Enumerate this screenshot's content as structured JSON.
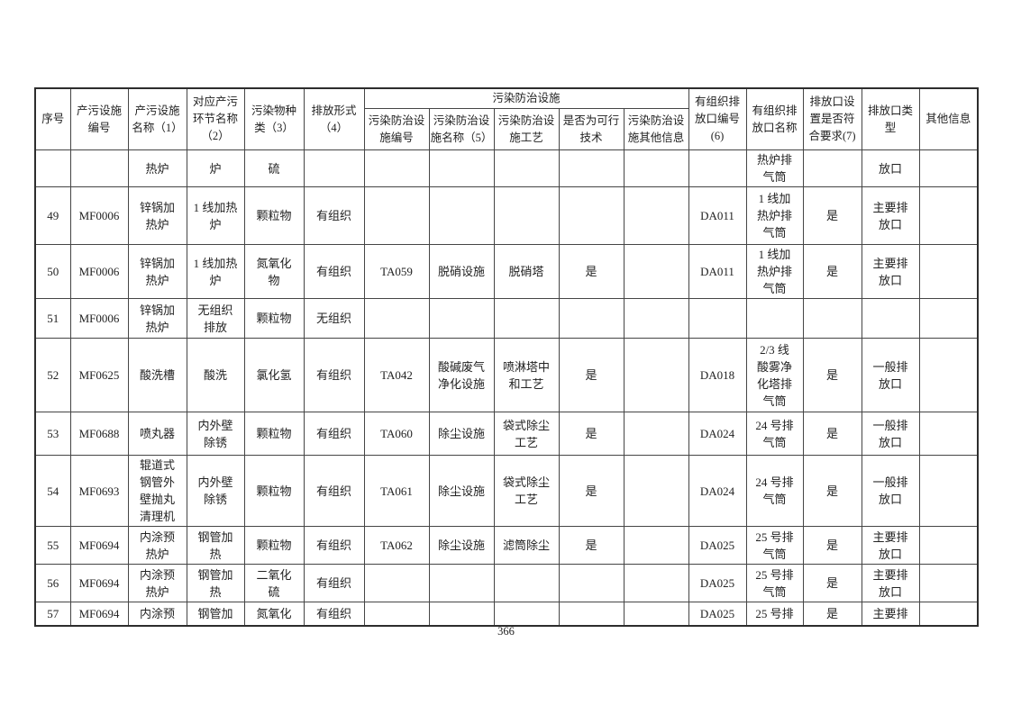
{
  "page": {
    "number": "366"
  },
  "table": {
    "group_header": "污染防治设施",
    "headers": {
      "seq": "序号",
      "facility_no": "产污设施\n编号",
      "facility_name": "产污设施\n名称（1）",
      "process_name": "对应产污\n环节名称\n（2）",
      "pollutant_type": "污染物种\n类（3）",
      "discharge_form": "排放形式\n（4）",
      "treatment_no": "污染防治设\n施编号",
      "treatment_name": "污染防治设\n施名称（5）",
      "treatment_process": "污染防治设\n施工艺",
      "feasible_tech": "是否为可行\n技术",
      "treatment_other_info": "污染防治设\n施其他信息",
      "outlet_no": "有组织排\n放口编号\n(6)",
      "outlet_name": "有组织排\n放口名称",
      "outlet_compliance": "排放口设\n置是否符\n合要求(7)",
      "outlet_type": "排放口类\n型",
      "other_info": "其他信息"
    },
    "rows": [
      {
        "cells": [
          "",
          "",
          "热炉",
          "炉",
          "硫",
          "",
          "",
          "",
          "",
          "",
          "",
          "",
          "热炉排\n气筒",
          "",
          "放口",
          ""
        ]
      },
      {
        "cells": [
          "49",
          "MF0006",
          "锌锅加\n热炉",
          "1 线加热\n炉",
          "颗粒物",
          "有组织",
          "",
          "",
          "",
          "",
          "",
          "DA011",
          "1 线加\n热炉排\n气筒",
          "是",
          "主要排\n放口",
          ""
        ]
      },
      {
        "cells": [
          "50",
          "MF0006",
          "锌锅加\n热炉",
          "1 线加热\n炉",
          "氮氧化\n物",
          "有组织",
          "TA059",
          "脱硝设施",
          "脱硝塔",
          "是",
          "",
          "DA011",
          "1 线加\n热炉排\n气筒",
          "是",
          "主要排\n放口",
          ""
        ]
      },
      {
        "cells": [
          "51",
          "MF0006",
          "锌锅加\n热炉",
          "无组织\n排放",
          "颗粒物",
          "无组织",
          "",
          "",
          "",
          "",
          "",
          "",
          "",
          "",
          "",
          ""
        ]
      },
      {
        "cells": [
          "52",
          "MF0625",
          "酸洗槽",
          "酸洗",
          "氯化氢",
          "有组织",
          "TA042",
          "酸碱废气\n净化设施",
          "喷淋塔中\n和工艺",
          "是",
          "",
          "DA018",
          "2/3 线\n酸雾净\n化塔排\n气筒",
          "是",
          "一般排\n放口",
          ""
        ]
      },
      {
        "cells": [
          "53",
          "MF0688",
          "喷丸器",
          "内外壁\n除锈",
          "颗粒物",
          "有组织",
          "TA060",
          "除尘设施",
          "袋式除尘\n工艺",
          "是",
          "",
          "DA024",
          "24 号排\n气筒",
          "是",
          "一般排\n放口",
          ""
        ]
      },
      {
        "cells": [
          "54",
          "MF0693",
          "辊道式\n钢管外\n壁抛丸\n清理机",
          "内外壁\n除锈",
          "颗粒物",
          "有组织",
          "TA061",
          "除尘设施",
          "袋式除尘\n工艺",
          "是",
          "",
          "DA024",
          "24 号排\n气筒",
          "是",
          "一般排\n放口",
          ""
        ]
      },
      {
        "cells": [
          "55",
          "MF0694",
          "内涂预\n热炉",
          "钢管加\n热",
          "颗粒物",
          "有组织",
          "TA062",
          "除尘设施",
          "滤筒除尘",
          "是",
          "",
          "DA025",
          "25 号排\n气筒",
          "是",
          "主要排\n放口",
          ""
        ]
      },
      {
        "cells": [
          "56",
          "MF0694",
          "内涂预\n热炉",
          "钢管加\n热",
          "二氧化\n硫",
          "有组织",
          "",
          "",
          "",
          "",
          "",
          "DA025",
          "25 号排\n气筒",
          "是",
          "主要排\n放口",
          ""
        ]
      },
      {
        "cells": [
          "57",
          "MF0694",
          "内涂预",
          "钢管加",
          "氮氧化",
          "有组织",
          "",
          "",
          "",
          "",
          "",
          "DA025",
          "25 号排",
          "是",
          "主要排",
          ""
        ]
      }
    ]
  }
}
